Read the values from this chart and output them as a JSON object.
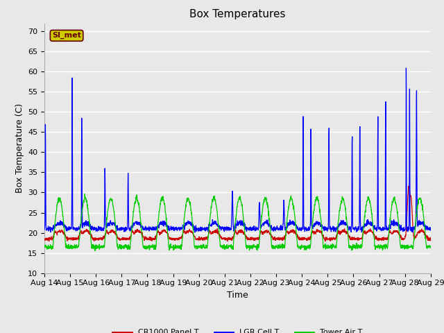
{
  "title": "Box Temperatures",
  "xlabel": "Time",
  "ylabel": "Box Temperature (C)",
  "ylim": [
    10,
    72
  ],
  "yticks": [
    10,
    15,
    20,
    25,
    30,
    35,
    40,
    45,
    50,
    55,
    60,
    65,
    70
  ],
  "background_color": "#e8e8e8",
  "plot_bg_color": "#e8e8e8",
  "grid_color": "#ffffff",
  "legend_labels": [
    "CR1000 Panel T",
    "LGR Cell T",
    "Tower Air T"
  ],
  "legend_colors": [
    "#cc0000",
    "#0000ff",
    "#00cc00"
  ],
  "watermark_text": "SI_met",
  "watermark_bg": "#cccc00",
  "watermark_fg": "#660000",
  "title_fontsize": 11,
  "axis_label_fontsize": 9,
  "tick_label_fontsize": 8
}
